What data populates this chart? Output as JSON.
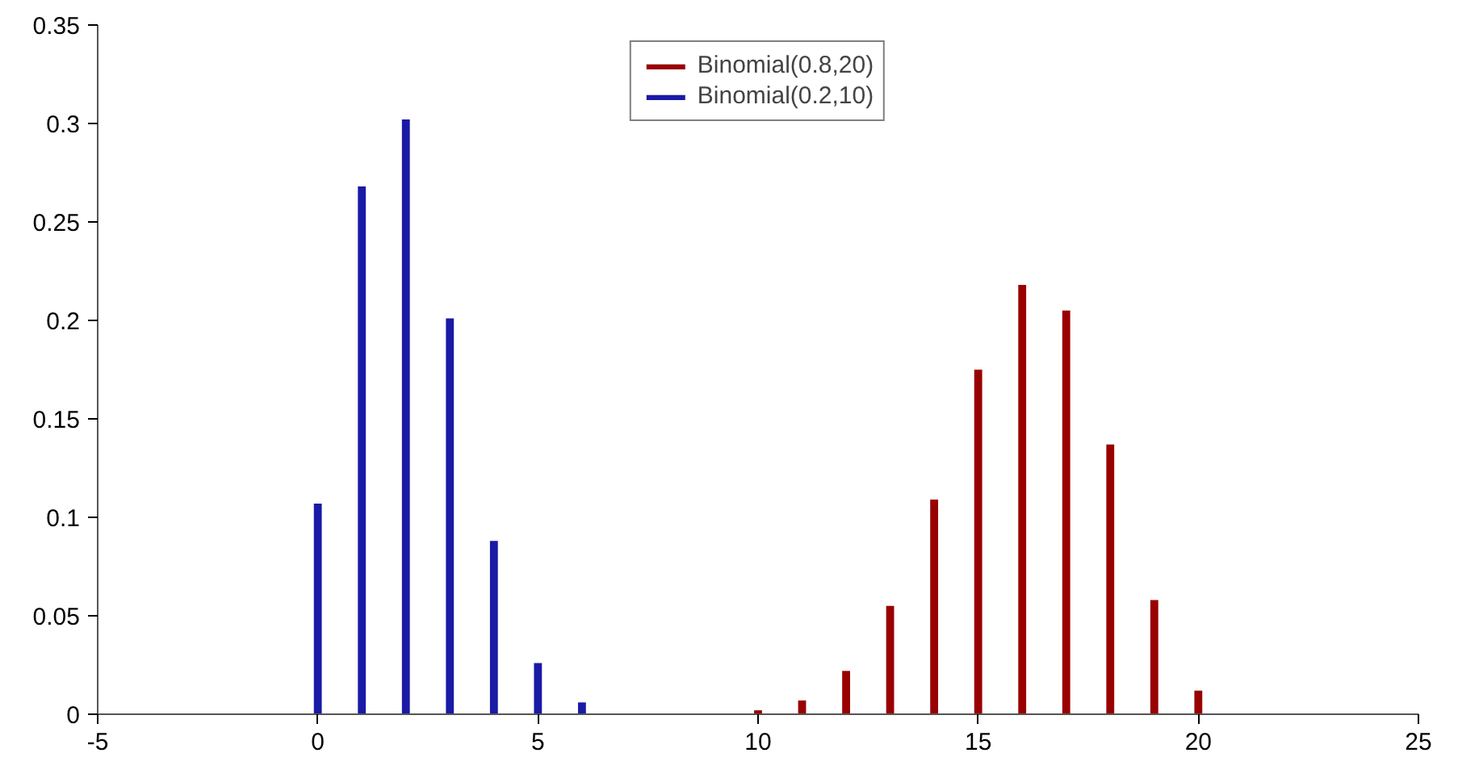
{
  "chart_data": {
    "type": "bar",
    "xlim": [
      -5,
      25
    ],
    "ylim": [
      0,
      0.35
    ],
    "xticks": [
      -5,
      0,
      5,
      10,
      15,
      20,
      25
    ],
    "yticks": [
      0,
      0.05,
      0.1,
      0.15,
      0.2,
      0.25,
      0.3,
      0.35
    ],
    "grid": false,
    "legend": "top",
    "series": [
      {
        "name": "Binomial(0.8,20)",
        "color": "#990000",
        "x": [
          10,
          11,
          12,
          13,
          14,
          15,
          16,
          17,
          18,
          19,
          20
        ],
        "values": [
          0.002,
          0.007,
          0.022,
          0.055,
          0.109,
          0.175,
          0.218,
          0.205,
          0.137,
          0.058,
          0.012
        ]
      },
      {
        "name": "Binomial(0.2,10)",
        "color": "#1a1aa6",
        "x": [
          0,
          1,
          2,
          3,
          4,
          5,
          6
        ],
        "values": [
          0.107,
          0.268,
          0.302,
          0.201,
          0.088,
          0.026,
          0.006
        ]
      }
    ]
  }
}
